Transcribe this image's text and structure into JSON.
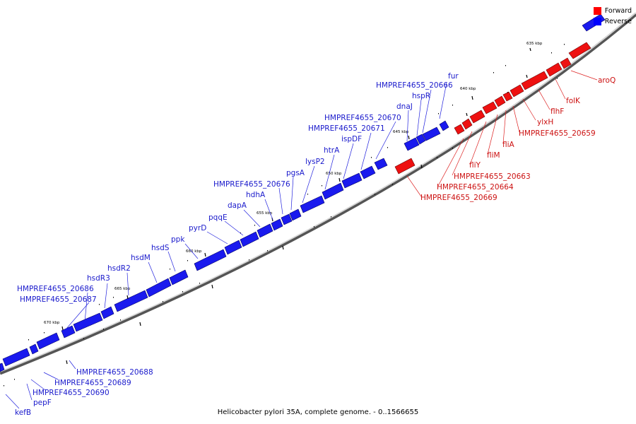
{
  "caption": "Helicobacter pylori 35A, complete genome. - 0..1566655",
  "legend": [
    {
      "label": "Forward",
      "color": "#ff0000"
    },
    {
      "label": "Reverse",
      "color": "#0000ff"
    }
  ],
  "kbp_labels": [
    "635 kbp",
    "640 kbp",
    "645 kbp",
    "650 kbp",
    "655 kbp",
    "660 kbp",
    "665 kbp",
    "670 kbp"
  ],
  "reverse_labels": [
    "fur",
    "HMPREF4655_20666",
    "hspR",
    "dnaJ",
    "HMPREF4655_20670",
    "HMPREF4655_20671",
    "ispDF",
    "htrA",
    "lysP2",
    "pgsA",
    "HMPREF4655_20676",
    "hdhA",
    "dapA",
    "pqqE",
    "pyrD",
    "ppk",
    "hsdS",
    "hsdM",
    "hsdR2",
    "hsdR3",
    "HMPREF4655_20686",
    "HMPREF4655_20687",
    "HMPREF4655_20688",
    "HMPREF4655_20689",
    "HMPREF4655_20690",
    "pepF",
    "kefB"
  ],
  "forward_labels": [
    "aroQ",
    "folK",
    "flhF",
    "ylxH",
    "HMPREF4655_20659",
    "fliA",
    "fliM",
    "fliY",
    "HMPREF4655_20663",
    "HMPREF4655_20664",
    "HMPREF4655_20669"
  ]
}
